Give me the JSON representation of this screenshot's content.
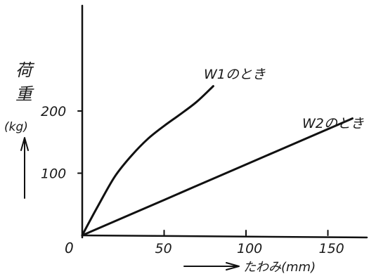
{
  "chart_data": {
    "type": "line",
    "title": "",
    "xlabel": "たわみ(mm)",
    "ylabel_main": "荷重",
    "ylabel_unit": "(kg)",
    "origin_label": "0",
    "xlim": [
      0,
      175
    ],
    "ylim": [
      0,
      330
    ],
    "x_ticks": [
      {
        "value": 50,
        "label": "50"
      },
      {
        "value": 100,
        "label": "100"
      },
      {
        "value": 150,
        "label": "150"
      }
    ],
    "y_ticks": [
      {
        "value": 100,
        "label": "100"
      },
      {
        "value": 200,
        "label": "200"
      }
    ],
    "series": [
      {
        "name": "W1のとき",
        "x": [
          0,
          5,
          10,
          20,
          30,
          40,
          50,
          60,
          70,
          80
        ],
        "y": [
          0,
          25,
          49,
          95,
          128,
          155,
          176,
          195,
          215,
          240
        ]
      },
      {
        "name": "W2のとき",
        "x": [
          0,
          50,
          100,
          150,
          165
        ],
        "y": [
          0,
          57,
          114,
          171,
          188
        ]
      }
    ],
    "line_color": "#111111",
    "grid": false,
    "legend": "inline labels at line ends"
  }
}
